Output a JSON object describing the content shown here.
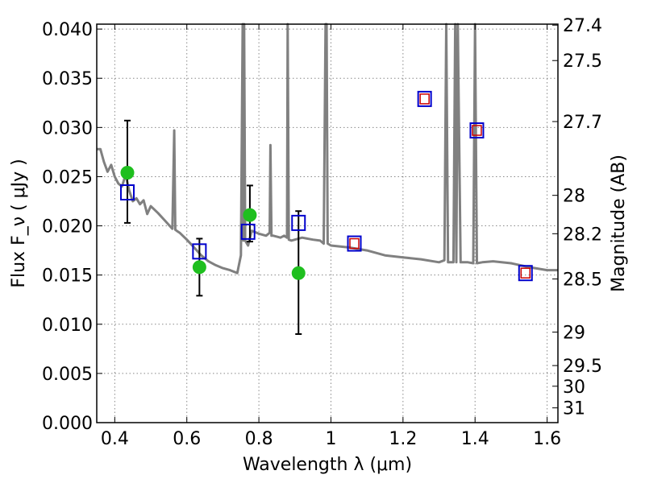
{
  "chart_data": {
    "type": "scatter",
    "title": "",
    "xlabel": "Wavelength  λ (μm)",
    "ylabel": "Flux  F_ν  ( μJy )",
    "ylabel_right": "Magnitude (AB)",
    "xlim": [
      0.35,
      1.63
    ],
    "ylim": [
      0.0,
      0.0405
    ],
    "grid": true,
    "legend": "none",
    "x_ticks": [
      0.4,
      0.6,
      0.8,
      1.0,
      1.2,
      1.4,
      1.6
    ],
    "x_tick_labels": [
      "0.4",
      "0.6",
      "0.8",
      "1",
      "1.2",
      "1.4",
      "1.6"
    ],
    "y_ticks": [
      0.0,
      0.005,
      0.01,
      0.015,
      0.02,
      0.025,
      0.03,
      0.035,
      0.04
    ],
    "y_tick_labels": [
      "0.000",
      "0.005",
      "0.010",
      "0.015",
      "0.020",
      "0.025",
      "0.030",
      "0.035",
      "0.040"
    ],
    "right_ticks": [
      {
        "label": "27.4",
        "flux": 0.0404
      },
      {
        "label": "27.5",
        "flux": 0.0368
      },
      {
        "label": "27.7",
        "flux": 0.0306
      },
      {
        "label": "28",
        "flux": 0.0231
      },
      {
        "label": "28.2",
        "flux": 0.0192
      },
      {
        "label": "28.5",
        "flux": 0.0146
      },
      {
        "label": "29",
        "flux": 0.0092
      },
      {
        "label": "29.5",
        "flux": 0.0058
      },
      {
        "label": "30",
        "flux": 0.0037
      },
      {
        "label": "31",
        "flux": 0.0015
      }
    ],
    "colors": {
      "model": "#808080",
      "observed": "#1fbf1f",
      "model_photometry": "#0000cc",
      "model_photometry_inner": "#cc0000",
      "errorbar": "#000000",
      "grid": "#888888"
    },
    "series": [
      {
        "type": "line",
        "x": [
          0.35,
          0.36,
          0.37,
          0.38,
          0.39,
          0.4,
          0.41,
          0.42,
          0.43,
          0.44,
          0.45,
          0.46,
          0.47,
          0.48,
          0.49,
          0.5,
          0.52,
          0.54,
          0.56,
          0.565,
          0.568,
          0.572,
          0.58,
          0.6,
          0.62,
          0.64,
          0.66,
          0.68,
          0.7,
          0.72,
          0.74,
          0.75,
          0.755,
          0.757,
          0.759,
          0.762,
          0.77,
          0.78,
          0.8,
          0.82,
          0.83,
          0.832,
          0.835,
          0.84,
          0.86,
          0.87,
          0.878,
          0.88,
          0.883,
          0.89,
          0.92,
          0.95,
          0.97,
          0.98,
          0.985,
          0.988,
          0.991,
          1.0,
          1.05,
          1.1,
          1.15,
          1.2,
          1.25,
          1.3,
          1.315,
          1.32,
          1.325,
          1.34,
          1.345,
          1.348,
          1.352,
          1.36,
          1.38,
          1.395,
          1.4,
          1.405,
          1.42,
          1.45,
          1.5,
          1.55,
          1.6,
          1.63
        ],
        "y": [
          0.0278,
          0.0278,
          0.0265,
          0.0255,
          0.0262,
          0.025,
          0.0243,
          0.024,
          0.0252,
          0.0236,
          0.0225,
          0.0228,
          0.0222,
          0.0226,
          0.0212,
          0.022,
          0.0213,
          0.0205,
          0.0197,
          0.0297,
          0.0196,
          0.0195,
          0.0193,
          0.0186,
          0.0178,
          0.017,
          0.0164,
          0.016,
          0.0157,
          0.0155,
          0.0152,
          0.017,
          0.0405,
          0.0185,
          0.0405,
          0.0185,
          0.018,
          0.0195,
          0.0192,
          0.019,
          0.0193,
          0.0282,
          0.019,
          0.019,
          0.0188,
          0.019,
          0.0188,
          0.0405,
          0.0186,
          0.0185,
          0.0188,
          0.0186,
          0.0185,
          0.0182,
          0.0405,
          0.0405,
          0.0182,
          0.018,
          0.0178,
          0.0175,
          0.017,
          0.0168,
          0.0166,
          0.0163,
          0.0165,
          0.0405,
          0.0163,
          0.0163,
          0.0405,
          0.0163,
          0.0405,
          0.0163,
          0.0163,
          0.0162,
          0.0405,
          0.0162,
          0.0163,
          0.0164,
          0.0162,
          0.0158,
          0.0155,
          0.0155
        ]
      },
      {
        "type": "scatter-errorbar",
        "x": [
          0.435,
          0.635,
          0.775,
          0.91
        ],
        "y": [
          0.0254,
          0.0158,
          0.0211,
          0.0152
        ],
        "yerr_low": [
          0.0203,
          0.0129,
          0.0184,
          0.009
        ],
        "yerr_high": [
          0.0307,
          0.0187,
          0.0241,
          0.0215
        ]
      },
      {
        "type": "scatter-square",
        "x": [
          0.435,
          0.635,
          0.77,
          0.91,
          1.065,
          1.26,
          1.405,
          1.54
        ],
        "y": [
          0.0234,
          0.0174,
          0.0194,
          0.0203,
          0.0182,
          0.0329,
          0.0297,
          0.0152
        ],
        "inner": [
          false,
          false,
          false,
          false,
          true,
          true,
          true,
          true
        ]
      }
    ]
  }
}
